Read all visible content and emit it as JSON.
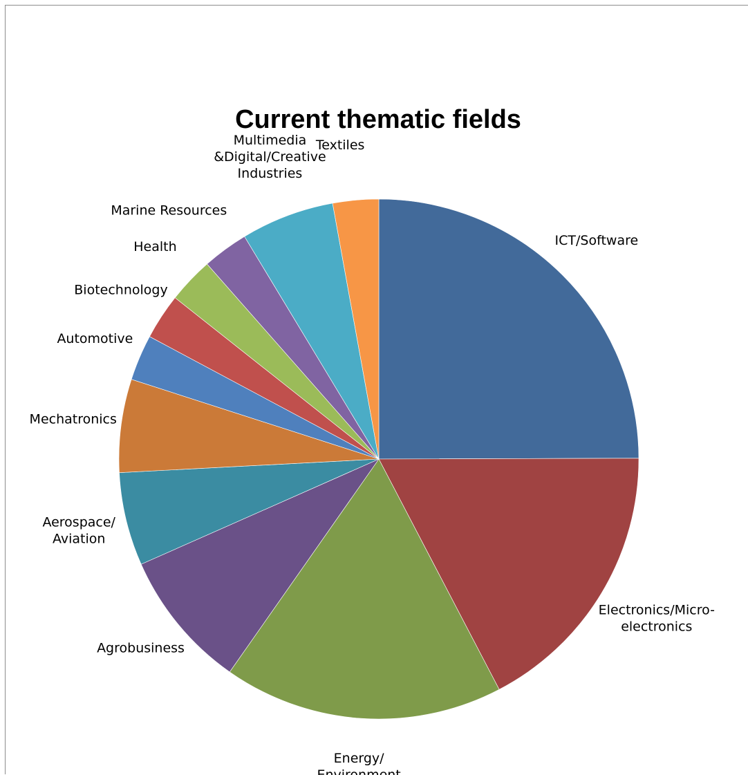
{
  "chart_data": {
    "type": "pie",
    "title": "Current thematic fields",
    "start_angle_deg": 0,
    "direction": "clockwise",
    "legend": "none",
    "slices": [
      {
        "label": [
          "ICT/Software"
        ],
        "value": 25.4,
        "color": "#426A9A"
      },
      {
        "label": [
          "Electronics/Micro-",
          "electronics"
        ],
        "value": 17.7,
        "color": "#A04342"
      },
      {
        "label": [
          "Energy/",
          "Environment"
        ],
        "value": 17.7,
        "color": "#7F9B4A"
      },
      {
        "label": [
          "Agrobusiness"
        ],
        "value": 8.8,
        "color": "#6A5188"
      },
      {
        "label": [
          "Aerospace/",
          "Aviation"
        ],
        "value": 5.9,
        "color": "#3B8CA2"
      },
      {
        "label": [
          "Mechatronics"
        ],
        "value": 5.9,
        "color": "#CB7A38"
      },
      {
        "label": [
          "Automotive"
        ],
        "value": 2.9,
        "color": "#4F80BD"
      },
      {
        "label": [
          "Biotechnology"
        ],
        "value": 2.9,
        "color": "#C0504D"
      },
      {
        "label": [
          "Health"
        ],
        "value": 2.9,
        "color": "#9BBB59"
      },
      {
        "label": [
          "Marine Resources"
        ],
        "value": 2.9,
        "color": "#8064A2"
      },
      {
        "label": [
          "Multimedia",
          "&Digital/Creative",
          "Industries"
        ],
        "value": 5.9,
        "color": "#4BACC6"
      },
      {
        "label": [
          "Textiles"
        ],
        "value": 2.9,
        "color": "#F79646"
      }
    ]
  }
}
